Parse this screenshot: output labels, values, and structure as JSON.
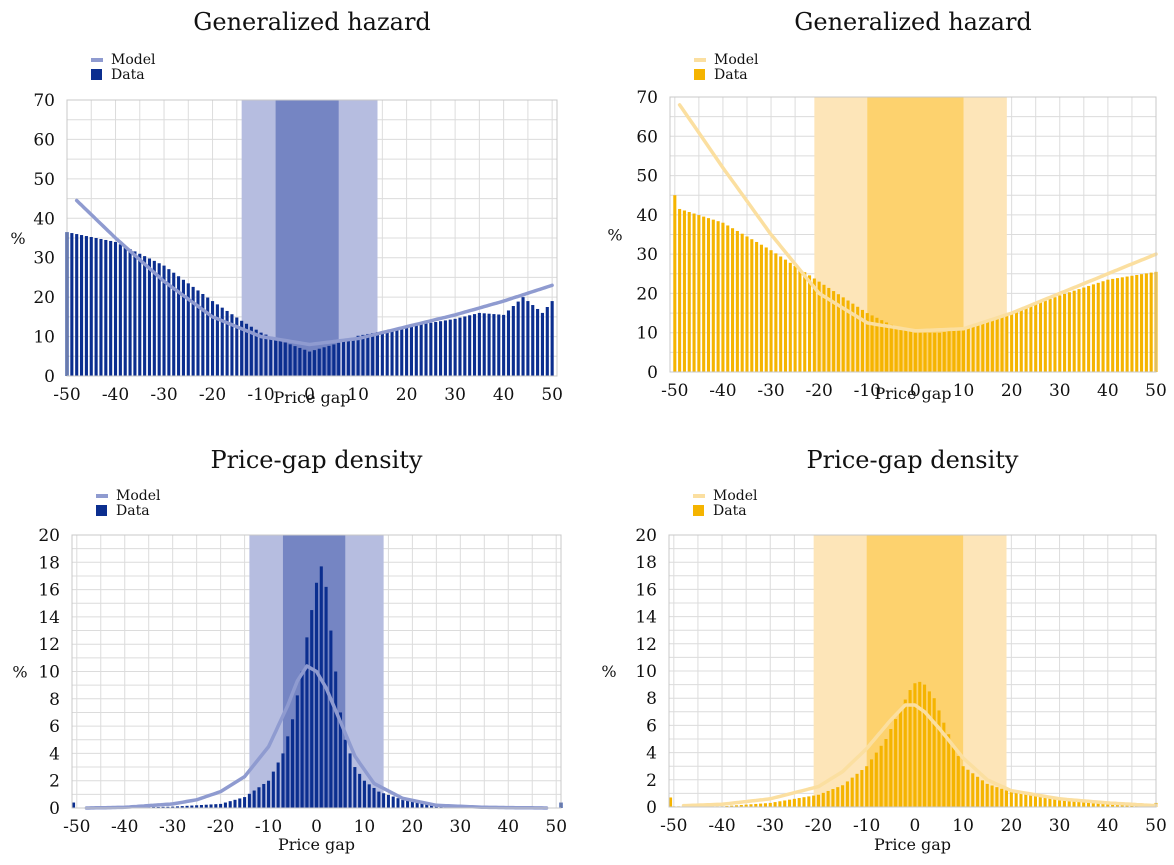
{
  "chart_data": [
    {
      "type": "bar",
      "title": "Generalized hazard",
      "xlabel": "Price gap",
      "ylabel": "%",
      "xlim": [
        -50,
        51
      ],
      "ylim": [
        0,
        70
      ],
      "xticks": [
        -50,
        -40,
        -30,
        -20,
        -10,
        0,
        10,
        20,
        30,
        40,
        50
      ],
      "yticks": [
        0,
        10,
        20,
        30,
        40,
        50,
        60,
        70
      ],
      "legend": {
        "placement": "top-left",
        "entries": [
          "Model",
          "Data"
        ]
      },
      "colors": {
        "data": "#0b2e8f",
        "model": "#8f9bd0",
        "band_outer": "#b6bde0",
        "band_inner": "#7585c3"
      },
      "bands": {
        "outer": [
          -14,
          14
        ],
        "inner": [
          -7,
          6
        ]
      },
      "series": [
        {
          "name": "Data",
          "kind": "bars",
          "points": [
            [
              -50,
              36.5
            ],
            [
              -40,
              34
            ],
            [
              -30,
              28
            ],
            [
              -20,
              19
            ],
            [
              -14,
              14
            ],
            [
              -10,
              11
            ],
            [
              -5,
              8.5
            ],
            [
              0,
              6.2
            ],
            [
              5,
              8
            ],
            [
              10,
              10.2
            ],
            [
              20,
              12.5
            ],
            [
              30,
              14.5
            ],
            [
              35,
              16
            ],
            [
              40,
              15.5
            ],
            [
              44,
              20
            ],
            [
              48,
              16
            ],
            [
              50,
              19
            ]
          ]
        },
        {
          "name": "Model",
          "kind": "line",
          "points": [
            [
              -48,
              44.5
            ],
            [
              -40,
              35
            ],
            [
              -30,
              24
            ],
            [
              -20,
              15
            ],
            [
              -10,
              10
            ],
            [
              0,
              8
            ],
            [
              10,
              9.5
            ],
            [
              20,
              12.5
            ],
            [
              30,
              15.5
            ],
            [
              40,
              19
            ],
            [
              50,
              23
            ]
          ]
        }
      ]
    },
    {
      "type": "bar",
      "title": "Generalized hazard",
      "xlabel": "Price gap",
      "ylabel": "%",
      "xlim": [
        -51,
        50
      ],
      "ylim": [
        0,
        70
      ],
      "xticks": [
        -50,
        -40,
        -30,
        -20,
        -10,
        0,
        10,
        20,
        30,
        40,
        50
      ],
      "yticks": [
        0,
        10,
        20,
        30,
        40,
        50,
        60,
        70
      ],
      "legend": {
        "placement": "top-left",
        "entries": [
          "Model",
          "Data"
        ]
      },
      "colors": {
        "data": "#f5b400",
        "model": "#fbdfa0",
        "band_outer": "#fde5b8",
        "band_inner": "#fdd26e"
      },
      "bands": {
        "outer": [
          -21,
          19
        ],
        "inner": [
          -10,
          10
        ]
      },
      "series": [
        {
          "name": "Data",
          "kind": "bars",
          "points": [
            [
              -50,
              45
            ],
            [
              -49,
              41.5
            ],
            [
              -40,
              38
            ],
            [
              -30,
              31
            ],
            [
              -20,
              23
            ],
            [
              -10,
              15
            ],
            [
              -5,
              12
            ],
            [
              0,
              10
            ],
            [
              5,
              10
            ],
            [
              10,
              11
            ],
            [
              20,
              15
            ],
            [
              30,
              19.5
            ],
            [
              40,
              23.5
            ],
            [
              50,
              25.5
            ]
          ]
        },
        {
          "name": "Model",
          "kind": "line",
          "points": [
            [
              -49,
              68
            ],
            [
              -40,
              52
            ],
            [
              -30,
              35
            ],
            [
              -20,
              20
            ],
            [
              -10,
              12.5
            ],
            [
              0,
              10.5
            ],
            [
              10,
              11
            ],
            [
              20,
              15
            ],
            [
              30,
              20
            ],
            [
              40,
              25
            ],
            [
              50,
              30
            ]
          ]
        }
      ]
    },
    {
      "type": "bar",
      "title": "Price-gap density",
      "xlabel": "Price gap",
      "ylabel": "%",
      "xlim": [
        -51,
        51
      ],
      "ylim": [
        0,
        20
      ],
      "xticks": [
        -50,
        -40,
        -30,
        -20,
        -10,
        0,
        10,
        20,
        30,
        40,
        50
      ],
      "yticks": [
        0,
        2,
        4,
        6,
        8,
        10,
        12,
        14,
        16,
        18,
        20
      ],
      "legend": {
        "placement": "top-left",
        "entries": [
          "Model",
          "Data"
        ]
      },
      "colors": {
        "data": "#0b2e8f",
        "model": "#8f9bd0",
        "band_outer": "#b6bde0",
        "band_inner": "#7585c3"
      },
      "bands": {
        "outer": [
          -14,
          14
        ],
        "inner": [
          -7,
          6
        ]
      },
      "series": [
        {
          "name": "Data",
          "kind": "bars",
          "edge_bars": [
            [
              -51,
              0.4
            ],
            [
              51,
              0.4
            ]
          ],
          "points": [
            [
              -40,
              0.02
            ],
            [
              -30,
              0.1
            ],
            [
              -20,
              0.3
            ],
            [
              -15,
              0.8
            ],
            [
              -10,
              2
            ],
            [
              -7,
              4
            ],
            [
              -5,
              6.5
            ],
            [
              -3,
              10
            ],
            [
              -2,
              12.5
            ],
            [
              -1,
              14.5
            ],
            [
              0,
              16.5
            ],
            [
              1,
              17.7
            ],
            [
              2,
              16.2
            ],
            [
              3,
              13
            ],
            [
              4,
              10
            ],
            [
              5,
              7
            ],
            [
              6,
              5
            ],
            [
              8,
              3
            ],
            [
              10,
              2
            ],
            [
              13,
              1.2
            ],
            [
              18,
              0.6
            ],
            [
              25,
              0.2
            ],
            [
              35,
              0.05
            ],
            [
              50,
              0.01
            ]
          ]
        },
        {
          "name": "Model",
          "kind": "line",
          "points": [
            [
              -48,
              0
            ],
            [
              -40,
              0.05
            ],
            [
              -30,
              0.3
            ],
            [
              -25,
              0.6
            ],
            [
              -20,
              1.2
            ],
            [
              -15,
              2.3
            ],
            [
              -10,
              4.5
            ],
            [
              -6,
              7.5
            ],
            [
              -4,
              9.3
            ],
            [
              -2,
              10.4
            ],
            [
              0,
              10
            ],
            [
              2,
              8.8
            ],
            [
              5,
              6.3
            ],
            [
              8,
              3.8
            ],
            [
              12,
              1.8
            ],
            [
              18,
              0.7
            ],
            [
              25,
              0.2
            ],
            [
              35,
              0.05
            ],
            [
              48,
              0
            ]
          ]
        }
      ]
    },
    {
      "type": "bar",
      "title": "Price-gap density",
      "xlabel": "Price gap",
      "ylabel": "%",
      "xlim": [
        -51,
        50
      ],
      "ylim": [
        0,
        20
      ],
      "xticks": [
        -50,
        -40,
        -30,
        -20,
        -10,
        0,
        10,
        20,
        30,
        40,
        50
      ],
      "yticks": [
        0,
        2,
        4,
        6,
        8,
        10,
        12,
        14,
        16,
        18,
        20
      ],
      "legend": {
        "placement": "top-left",
        "entries": [
          "Model",
          "Data"
        ]
      },
      "colors": {
        "data": "#f5b400",
        "model": "#fbdfa0",
        "band_outer": "#fde5b8",
        "band_inner": "#fdd26e"
      },
      "bands": {
        "outer": [
          -21,
          19
        ],
        "inner": [
          -10,
          10
        ]
      },
      "series": [
        {
          "name": "Data",
          "kind": "bars",
          "edge_bars": [
            [
              -51,
              0.7
            ],
            [
              50,
              0.3
            ]
          ],
          "points": [
            [
              -40,
              0.05
            ],
            [
              -30,
              0.3
            ],
            [
              -20,
              0.9
            ],
            [
              -15,
              1.6
            ],
            [
              -10,
              3
            ],
            [
              -6,
              5
            ],
            [
              -3,
              7.2
            ],
            [
              -1,
              8.6
            ],
            [
              0,
              9.1
            ],
            [
              1,
              9.2
            ],
            [
              2,
              9
            ],
            [
              4,
              8
            ],
            [
              6,
              6.2
            ],
            [
              8,
              4.5
            ],
            [
              10,
              3
            ],
            [
              15,
              1.7
            ],
            [
              20,
              1.1
            ],
            [
              30,
              0.5
            ],
            [
              40,
              0.2
            ],
            [
              50,
              0.1
            ]
          ]
        },
        {
          "name": "Model",
          "kind": "line",
          "points": [
            [
              -48,
              0.1
            ],
            [
              -40,
              0.2
            ],
            [
              -30,
              0.6
            ],
            [
              -20,
              1.5
            ],
            [
              -15,
              2.6
            ],
            [
              -10,
              4.3
            ],
            [
              -5,
              6.4
            ],
            [
              -2,
              7.5
            ],
            [
              0,
              7.5
            ],
            [
              2,
              7
            ],
            [
              5,
              5.8
            ],
            [
              10,
              3.6
            ],
            [
              15,
              2
            ],
            [
              20,
              1.2
            ],
            [
              30,
              0.6
            ],
            [
              40,
              0.3
            ],
            [
              50,
              0.1
            ]
          ]
        }
      ]
    }
  ]
}
